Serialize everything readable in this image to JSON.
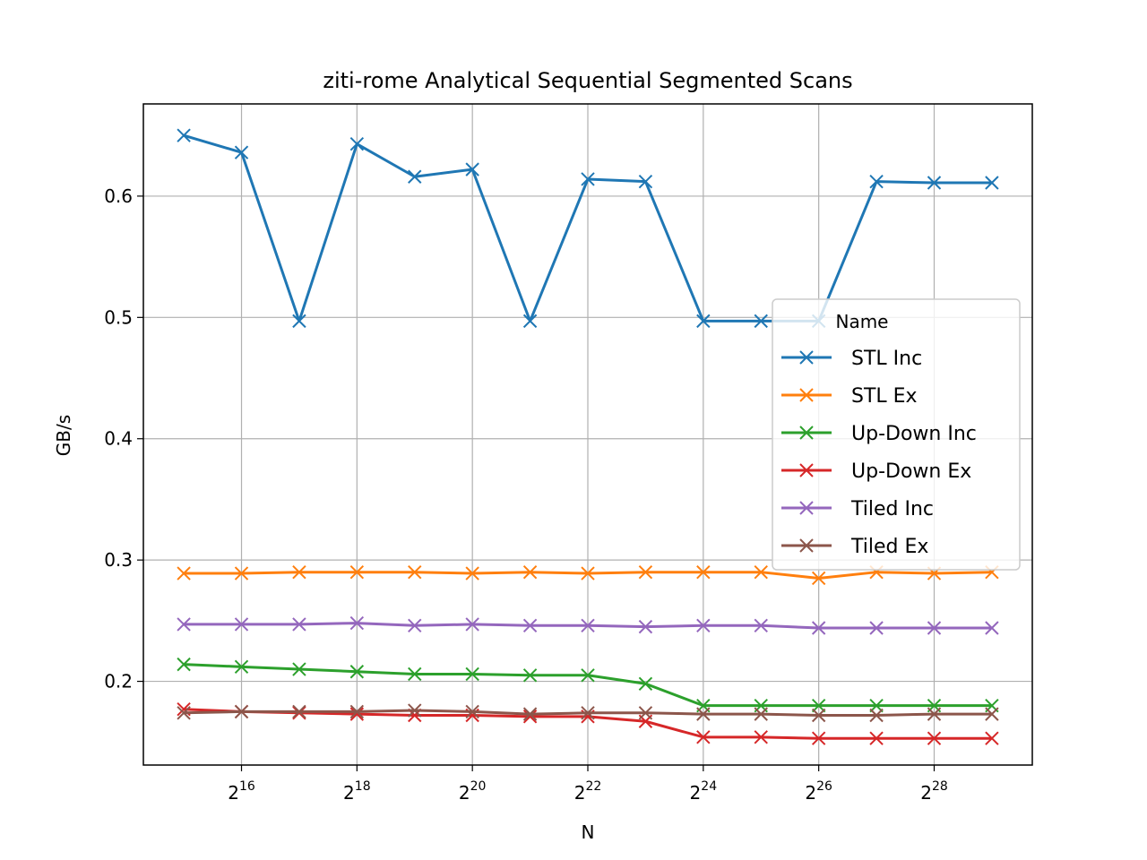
{
  "chart_data": {
    "type": "line",
    "title": "ziti-rome Analytical Sequential Segmented Scans",
    "xlabel": "N",
    "ylabel": "GB/s",
    "xscale": "log2",
    "x": [
      32768,
      65536,
      131072,
      262144,
      524288,
      1048576,
      2097152,
      4194304,
      8388608,
      16777216,
      33554432,
      67108864,
      134217728,
      268435456,
      536870912
    ],
    "xticks": [
      {
        "base": "2",
        "exp": "16",
        "value": 65536
      },
      {
        "base": "2",
        "exp": "18",
        "value": 262144
      },
      {
        "base": "2",
        "exp": "20",
        "value": 1048576
      },
      {
        "base": "2",
        "exp": "22",
        "value": 4194304
      },
      {
        "base": "2",
        "exp": "24",
        "value": 16777216
      },
      {
        "base": "2",
        "exp": "26",
        "value": 67108864
      },
      {
        "base": "2",
        "exp": "28",
        "value": 268435456
      }
    ],
    "yticks": [
      "0.2",
      "0.3",
      "0.4",
      "0.5",
      "0.6"
    ],
    "ylim": [
      0.131,
      0.676
    ],
    "grid": true,
    "marker": "x",
    "legend": {
      "title": "Name",
      "placement": "center-right"
    },
    "series": [
      {
        "name": "STL Inc",
        "color": "#1f77b4",
        "values": [
          0.65,
          0.636,
          0.497,
          0.643,
          0.616,
          0.622,
          0.497,
          0.614,
          0.612,
          0.497,
          0.497,
          0.497,
          0.612,
          0.611,
          0.611
        ]
      },
      {
        "name": "STL Ex",
        "color": "#ff7f0e",
        "values": [
          0.289,
          0.289,
          0.29,
          0.29,
          0.29,
          0.289,
          0.29,
          0.289,
          0.29,
          0.29,
          0.29,
          0.285,
          0.29,
          0.289,
          0.29
        ]
      },
      {
        "name": "Up-Down Inc",
        "color": "#2ca02c",
        "values": [
          0.214,
          0.212,
          0.21,
          0.208,
          0.206,
          0.206,
          0.205,
          0.205,
          0.198,
          0.18,
          0.18,
          0.18,
          0.18,
          0.18,
          0.18
        ]
      },
      {
        "name": "Up-Down Ex",
        "color": "#d62728",
        "values": [
          0.177,
          0.175,
          0.174,
          0.173,
          0.172,
          0.172,
          0.171,
          0.171,
          0.167,
          0.154,
          0.154,
          0.153,
          0.153,
          0.153,
          0.153
        ]
      },
      {
        "name": "Tiled Inc",
        "color": "#9467bd",
        "values": [
          0.247,
          0.247,
          0.247,
          0.248,
          0.246,
          0.247,
          0.246,
          0.246,
          0.245,
          0.246,
          0.246,
          0.244,
          0.244,
          0.244,
          0.244
        ]
      },
      {
        "name": "Tiled Ex",
        "color": "#8c564b",
        "values": [
          0.174,
          0.175,
          0.175,
          0.175,
          0.176,
          0.175,
          0.173,
          0.174,
          0.174,
          0.173,
          0.173,
          0.172,
          0.172,
          0.173,
          0.173
        ]
      }
    ]
  }
}
